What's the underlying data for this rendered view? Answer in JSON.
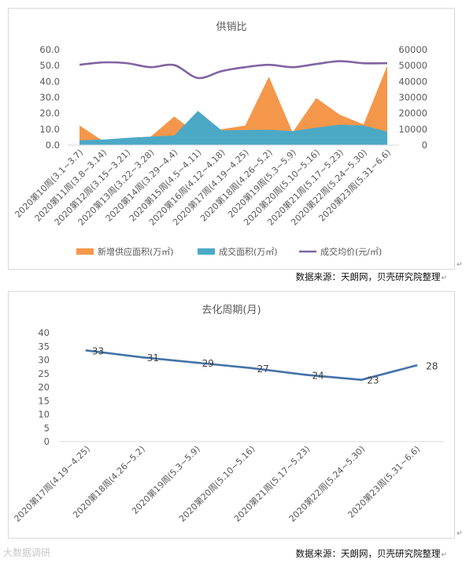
{
  "chart_data": [
    {
      "type": "area",
      "title": "供销比",
      "categories": [
        "2020第10周(3.1~3.7)",
        "2020第11周(3.8~3.14)",
        "2020第12周(3.15~3.21)",
        "2020第13周(3.22~3.28)",
        "2020第14周(3.29~4.4)",
        "2020第15周(4.5~4.11)",
        "2020第16周(4.12~4.18)",
        "2020第17周(4.19~4.25)",
        "2020第18周(4.26~5.2)",
        "2020第19周(5.3~5.9)",
        "2020第20周(5.10~5.16)",
        "2020第21周(5.17~5.23)",
        "2020第22周(5.24~5.30)",
        "2020第23周(5.31~6.6)"
      ],
      "left_axis": {
        "ticks": [
          "0.0",
          "10.0",
          "20.0",
          "30.0",
          "40.0",
          "50.0",
          "60.0"
        ],
        "ylim": [
          0,
          60
        ]
      },
      "right_axis": {
        "ticks": [
          "0",
          "10000",
          "20000",
          "30000",
          "40000",
          "50000",
          "60000"
        ],
        "ylim": [
          0,
          60000
        ]
      },
      "series": [
        {
          "name": "新增供应面积(万㎡)",
          "type": "area",
          "axis": "left",
          "color": "#f4974a",
          "values": [
            12.3,
            2.5,
            4.5,
            5.2,
            18.0,
            6.7,
            10.0,
            12.3,
            43.0,
            8.0,
            29.6,
            19.0,
            13.0,
            50.0
          ]
        },
        {
          "name": "成交面积(万㎡)",
          "type": "area",
          "axis": "left",
          "color": "#4ba9c6",
          "values": [
            3.0,
            3.5,
            4.5,
            5.3,
            6.0,
            21.5,
            9.3,
            9.5,
            9.7,
            8.8,
            11.0,
            12.8,
            12.3,
            8.5
          ]
        },
        {
          "name": "成交均价(元/㎡)",
          "type": "line",
          "axis": "right",
          "color": "#8064a2",
          "values": [
            50500,
            52000,
            51500,
            49000,
            50300,
            42200,
            46500,
            49000,
            50500,
            49000,
            51000,
            52800,
            51500,
            51500
          ]
        }
      ],
      "legend_position": "bottom",
      "grid": false
    },
    {
      "type": "line",
      "title": "去化周期(月)",
      "categories": [
        "2020第17周(4.19~4.25)",
        "2020第18周(4.26~5.2)",
        "2020第19周(5.3~5.9)",
        "2020第20周(5.10~5.16)",
        "2020第21周(5.17~5.23)",
        "2020第22周(5.24~5.30)",
        "2020第23周(5.31~6.6)"
      ],
      "y_axis": {
        "ticks": [
          "0",
          "5",
          "10",
          "15",
          "20",
          "25",
          "30",
          "35",
          "40"
        ],
        "ylim": [
          0,
          40
        ]
      },
      "series": [
        {
          "color": "#4472a8",
          "values": [
            33.5,
            31,
            29,
            27,
            24.5,
            22.7,
            28
          ],
          "labels": [
            "33",
            "31",
            "29",
            "27",
            "24",
            "23",
            "28"
          ]
        }
      ],
      "legend_position": "none",
      "grid": false
    }
  ],
  "source": {
    "top": "数据来源：天朗网，贝壳研究院整理",
    "bottom": "数据来源：天朗网，贝壳研究院整理",
    "mark": "↵"
  },
  "watermark": "大数据调研"
}
